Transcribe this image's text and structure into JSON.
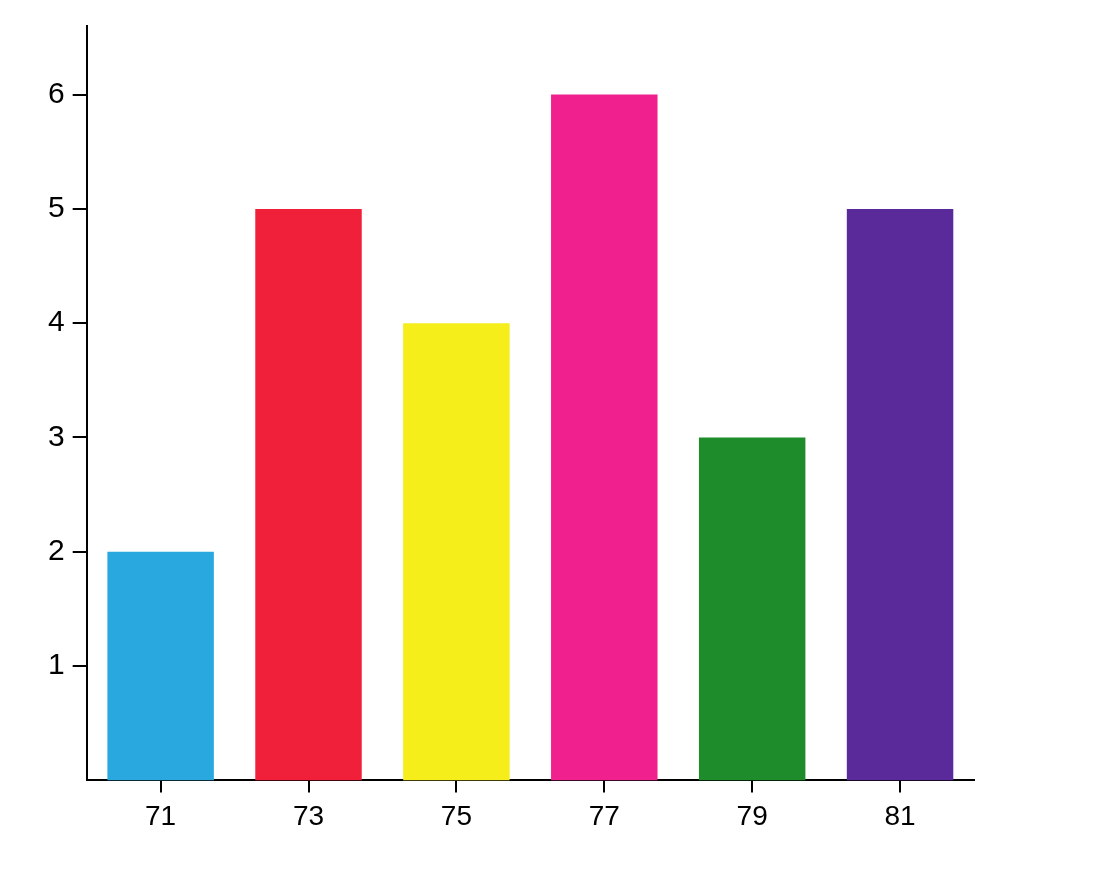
{
  "chart_data": {
    "type": "bar",
    "categories": [
      "71",
      "73",
      "75",
      "77",
      "79",
      "81"
    ],
    "values": [
      2,
      5,
      4,
      6,
      3,
      5
    ],
    "colors": [
      "#29a8e0",
      "#f0203a",
      "#f5ee1a",
      "#f0208f",
      "#1e8c2a",
      "#5a2a9a"
    ],
    "ylim": [
      0,
      6.6
    ],
    "yticks": [
      1,
      2,
      3,
      4,
      5,
      6
    ],
    "grid": false,
    "legend": false
  }
}
